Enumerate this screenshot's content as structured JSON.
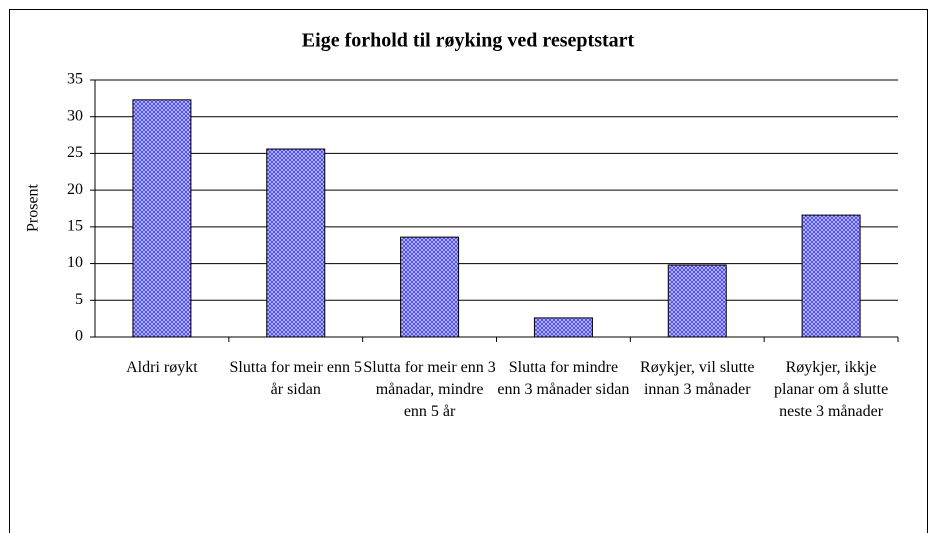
{
  "chart_data": {
    "type": "bar",
    "title": "Eige forhold til røyking ved reseptstart",
    "y_label": "Prosent",
    "categories": [
      "Aldri røykt",
      "Slutta for meir enn 5 år sidan",
      "Slutta for meir enn 3 månadar, mindre enn 5 år",
      "Slutta for mindre enn 3 månader sidan",
      "Røykjer, vil slutte innan 3 månader",
      "Røykjer, ikkje planar om å slutte neste 3 månader"
    ],
    "values": [
      32.3,
      25.6,
      13.6,
      2.6,
      9.8,
      16.6
    ],
    "color": "#3a3af0",
    "ylim": [
      0,
      35
    ],
    "yticks": [
      0,
      5,
      10,
      15,
      20,
      25,
      30,
      35
    ],
    "grid": true
  }
}
